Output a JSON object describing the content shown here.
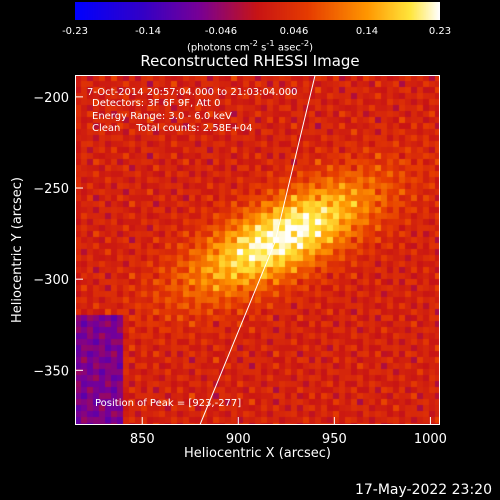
{
  "colorbar": {
    "ticks": [
      "-0.23",
      "-0.14",
      "-0.046",
      "0.046",
      "0.14",
      "0.23"
    ],
    "unit_main": "(photons cm",
    "unit_sup1": "-2",
    "unit_mid1": " s",
    "unit_sup2": "-1",
    "unit_mid2": " asec",
    "unit_sup3": "-2",
    "unit_end": ")",
    "range": [
      -0.23,
      0.23
    ]
  },
  "chart_data": {
    "type": "heatmap",
    "title": "Reconstructed RHESSI Image",
    "xlabel": "Heliocentric X (arcsec)",
    "ylabel": "Heliocentric Y (arcsec)",
    "xlim": [
      815,
      1005
    ],
    "ylim": [
      -380,
      -188
    ],
    "x_ticks": [
      850,
      900,
      950,
      1000
    ],
    "y_ticks": [
      -200,
      -250,
      -300,
      -350
    ],
    "peak": {
      "x": 923,
      "y": -277
    },
    "limb_line": [
      [
        880,
        -380
      ],
      [
        919,
        -280
      ],
      [
        940,
        -188
      ]
    ]
  },
  "info": {
    "time": "7-Oct-2014 20:57:04.000 to 21:03:04.000",
    "detectors": "Detectors: 3F 6F 9F, Att 0",
    "energy": "Energy Range: 3.0 - 6.0 keV",
    "clean": "Clean     Total counts: 2.58E+04",
    "peak_text": "Position of Peak = [923,-277]"
  },
  "timestamp": "17-May-2022 23:20"
}
